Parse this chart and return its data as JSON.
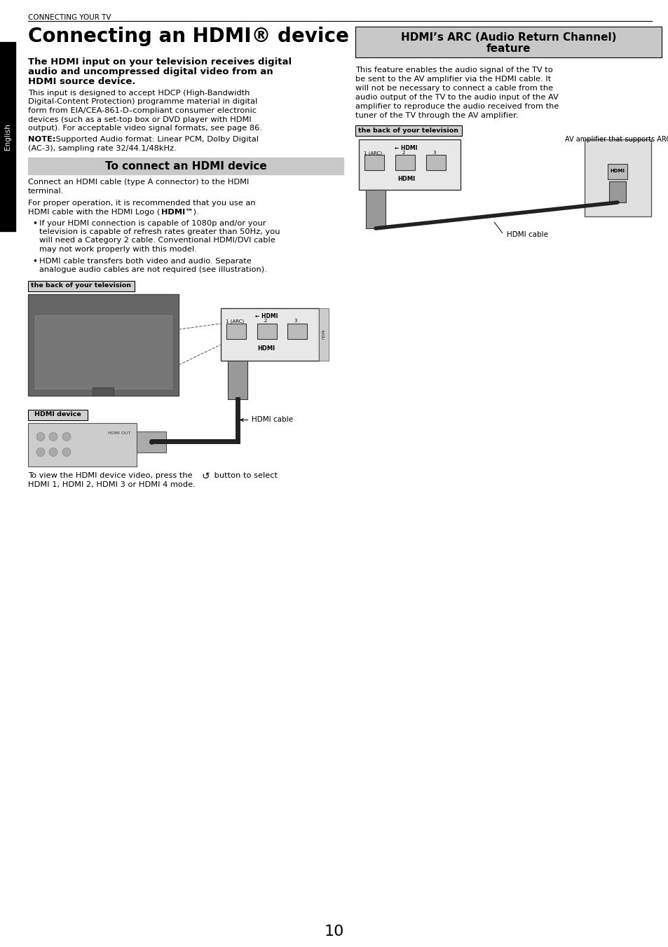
{
  "page_number": "10",
  "header_text": "CONNECTING YOUR TV",
  "sidebar_text": "English",
  "box_title_bg": "#c8c8c8",
  "left_column": {
    "title": "Connecting an HDMI® device",
    "intro_bold_lines": [
      "The HDMI input on your television receives digital",
      "audio and uncompressed digital video from an",
      "HDMI source device."
    ],
    "para1_lines": [
      "This input is designed to accept HDCP (High-Bandwidth",
      "Digital-Content Protection) programme material in digital",
      "form from EIA/CEA-861-D–compliant consumer electronic",
      "devices (such as a set-top box or DVD player with HDMI",
      "output). For acceptable video signal formats, see page 86."
    ],
    "note_bold": "NOTE:",
    "note_text": " Supported Audio format: Linear PCM, Dolby Digital (AC-3), sampling rate 32/44.1/48kHz.",
    "note_line2": "(AC-3), sampling rate 32/44.1/48kHz.",
    "box_title": "To connect an HDMI device",
    "para2_lines": [
      "Connect an HDMI cable (type A connector) to the HDMI",
      "terminal."
    ],
    "para3_line1": "For proper operation, it is recommended that you use an",
    "para3_line2_pre": "HDMI cable with the HDMI Logo (",
    "para3_line2_logo": "HDMI™",
    "para3_line2_post": " ).",
    "bullet1_lines": [
      "If your HDMI connection is capable of 1080p and/or your",
      "television is capable of refresh rates greater than 50Hz, you",
      "will need a Category 2 cable. Conventional HDMI/DVI cable",
      "may not work properly with this model."
    ],
    "bullet2_lines": [
      "HDMI cable transfers both video and audio. Separate",
      "analogue audio cables are not required (see illustration)."
    ],
    "label_tv": "the back of your television",
    "label_hdmi_cable": "HDMI cable",
    "label_hdmi_device": "HDMI device",
    "caption_line1_pre": "To view the HDMI device video, press the",
    "caption_line1_post": " button to select",
    "caption_line2": "HDMI 1, HDMI 2, HDMI 3 or HDMI 4 mode."
  },
  "right_column": {
    "box_title_line1": "HDMI’s ARC (Audio Return Channel)",
    "box_title_line2": "feature",
    "para1_lines": [
      "This feature enables the audio signal of the TV to",
      "be sent to the AV amplifier via the HDMI cable. It",
      "will not be necessary to connect a cable from the",
      "audio output of the TV to the audio input of the AV",
      "amplifier to reproduce the audio received from the",
      "tuner of the TV through the AV amplifier."
    ],
    "label_tv": "the back of your television",
    "label_av_amp": "AV amplifier that supports ARC",
    "label_hdmi_cable": "HDMI cable"
  },
  "bg_color": "#ffffff",
  "text_color": "#000000",
  "sidebar_bg": "#000000",
  "sidebar_fg": "#ffffff",
  "header_line_color": "#000000",
  "label_box_bg": "#d0d0d0",
  "label_box_border": "#000000"
}
